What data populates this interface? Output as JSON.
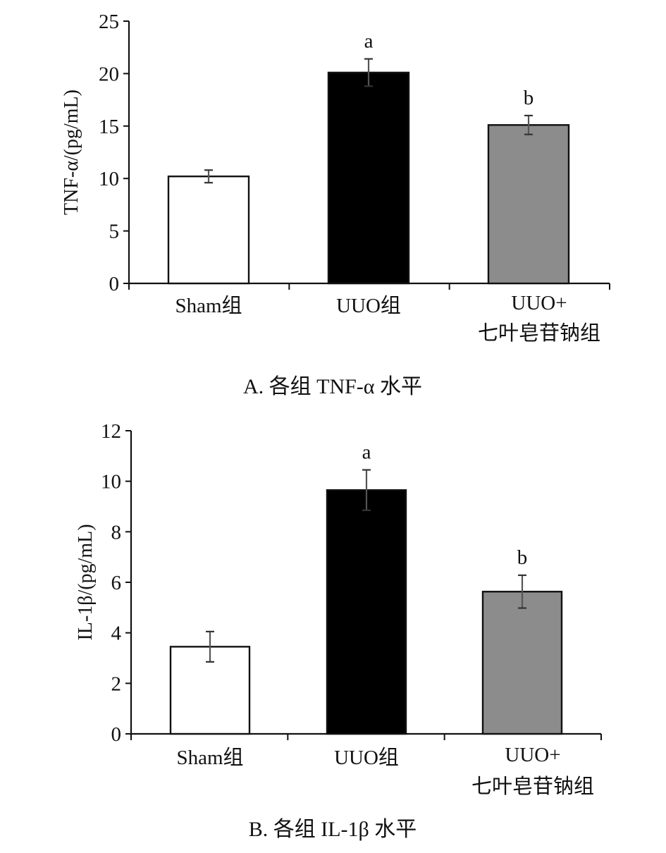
{
  "chart_data": [
    {
      "type": "bar",
      "panel": "A",
      "categories": [
        [
          "Sham组"
        ],
        [
          "UUO组"
        ],
        [
          "UUO+",
          "七叶皂苷钠组"
        ]
      ],
      "values": [
        10.2,
        20.1,
        15.1
      ],
      "errors": [
        0.6,
        1.3,
        0.9
      ],
      "bar_colors": [
        "#ffffff",
        "#000000",
        "#8c8c8c"
      ],
      "significance": [
        "",
        "a",
        "b"
      ],
      "ylabel": "TNF-α/(pg/mL)",
      "ylim": [
        0,
        25
      ],
      "yticks": [
        0,
        5,
        10,
        15,
        20,
        25
      ],
      "caption": "A. 各组 TNF-α 水平"
    },
    {
      "type": "bar",
      "panel": "B",
      "categories": [
        [
          "Sham组"
        ],
        [
          "UUO组"
        ],
        [
          "UUO+",
          "七叶皂苷钠组"
        ]
      ],
      "values": [
        3.45,
        9.65,
        5.63
      ],
      "errors": [
        0.6,
        0.8,
        0.65
      ],
      "bar_colors": [
        "#ffffff",
        "#000000",
        "#8c8c8c"
      ],
      "significance": [
        "",
        "a",
        "b"
      ],
      "ylabel": "IL-1β/(pg/mL)",
      "ylim": [
        0,
        12
      ],
      "yticks": [
        0,
        2,
        4,
        6,
        8,
        10,
        12
      ],
      "caption": "B. 各组 IL-1β 水平"
    }
  ]
}
